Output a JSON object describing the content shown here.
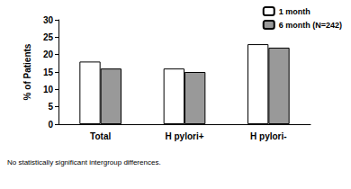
{
  "chart_data": {
    "type": "bar",
    "y_label": "% of Patients",
    "categories": [
      "Total",
      "H pylori+",
      "H pylori-"
    ],
    "series": [
      {
        "name": "1 month",
        "color": "#ffffff",
        "values": [
          18,
          16,
          23
        ]
      },
      {
        "name": "6 month (N=242)",
        "color": "#999999",
        "values": [
          16,
          15,
          22
        ]
      }
    ],
    "ylim": [
      0,
      30
    ],
    "yticks": [
      0,
      5,
      10,
      15,
      20,
      25,
      30
    ],
    "grid": false,
    "legend": "upper right",
    "annotations": [
      "No statistically significant intergroup differences."
    ]
  }
}
